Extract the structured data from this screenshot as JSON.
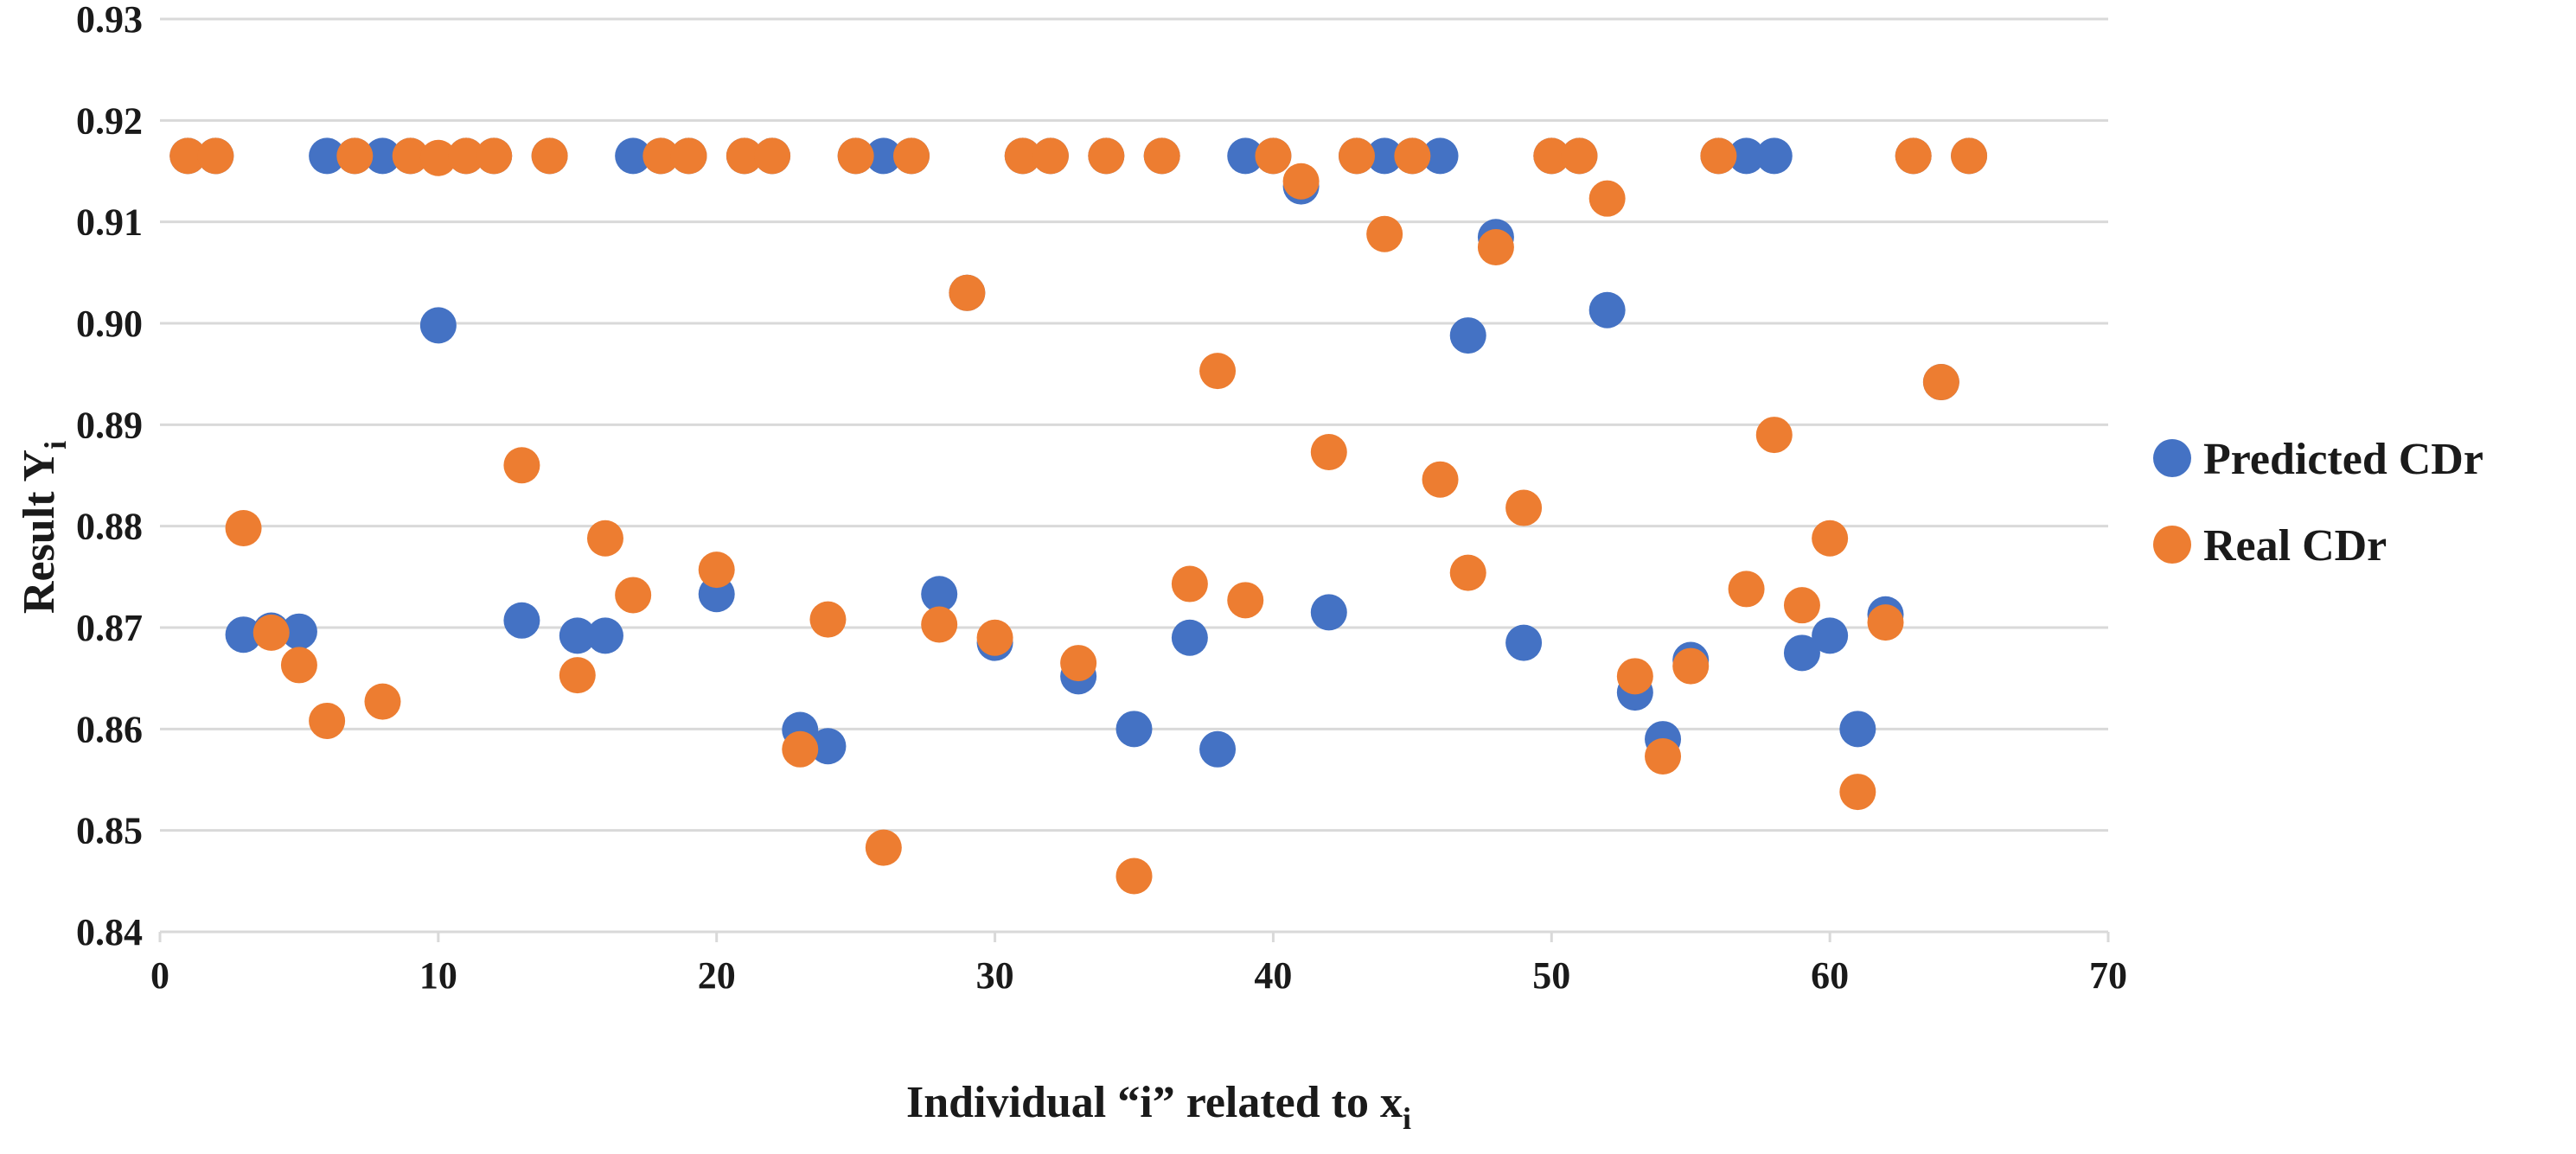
{
  "chart_data": {
    "type": "scatter",
    "title": "",
    "xlabel": "Individual “i” related to x",
    "xlabel_sub": "i",
    "ylabel": "Result Y",
    "ylabel_sub": "i",
    "xlim": [
      0,
      70
    ],
    "ylim": [
      0.84,
      0.93
    ],
    "xticks": [
      0,
      10,
      20,
      30,
      40,
      50,
      60,
      70
    ],
    "yticks": [
      0.84,
      0.85,
      0.86,
      0.87,
      0.88,
      0.89,
      0.9,
      0.91,
      0.92,
      0.93
    ],
    "ytick_labels": [
      "0.84",
      "0.85",
      "0.86",
      "0.87",
      "0.88",
      "0.89",
      "0.90",
      "0.91",
      "0.92",
      "0.93"
    ],
    "grid": "horizontal",
    "legend": "right",
    "series": [
      {
        "name": "Predicted CDr",
        "color": "#4472C4",
        "points": [
          [
            1,
            0.9165
          ],
          [
            2,
            0.9165
          ],
          [
            3,
            0.8693
          ],
          [
            4,
            0.8697
          ],
          [
            5,
            0.8696
          ],
          [
            6,
            0.9165
          ],
          [
            7,
            0.9165
          ],
          [
            8,
            0.9165
          ],
          [
            9,
            0.9165
          ],
          [
            10,
            0.8998
          ],
          [
            11,
            0.9165
          ],
          [
            12,
            0.9165
          ],
          [
            13,
            0.8707
          ],
          [
            14,
            0.9165
          ],
          [
            15,
            0.8692
          ],
          [
            16,
            0.8692
          ],
          [
            17,
            0.9165
          ],
          [
            18,
            0.9165
          ],
          [
            19,
            0.9165
          ],
          [
            20,
            0.8733
          ],
          [
            21,
            0.9165
          ],
          [
            22,
            0.9165
          ],
          [
            23,
            0.8599
          ],
          [
            24,
            0.8583
          ],
          [
            25,
            0.9165
          ],
          [
            26,
            0.9165
          ],
          [
            27,
            0.9165
          ],
          [
            28,
            0.8733
          ],
          [
            29,
            0.903
          ],
          [
            30,
            0.8685
          ],
          [
            31,
            0.9165
          ],
          [
            32,
            0.9165
          ],
          [
            33,
            0.8652
          ],
          [
            34,
            0.9165
          ],
          [
            35,
            0.86
          ],
          [
            36,
            0.9165
          ],
          [
            37,
            0.869
          ],
          [
            38,
            0.858
          ],
          [
            39,
            0.9165
          ],
          [
            40,
            0.9165
          ],
          [
            41,
            0.9135
          ],
          [
            42,
            0.8715
          ],
          [
            43,
            0.9165
          ],
          [
            44,
            0.9165
          ],
          [
            45,
            0.9165
          ],
          [
            46,
            0.9165
          ],
          [
            47,
            0.8988
          ],
          [
            48,
            0.9085
          ],
          [
            49,
            0.8685
          ],
          [
            50,
            0.9165
          ],
          [
            51,
            0.9165
          ],
          [
            52,
            0.9013
          ],
          [
            53,
            0.8636
          ],
          [
            54,
            0.859
          ],
          [
            55,
            0.8668
          ],
          [
            56,
            0.9165
          ],
          [
            57,
            0.9165
          ],
          [
            58,
            0.9165
          ],
          [
            59,
            0.8675
          ],
          [
            60,
            0.8692
          ],
          [
            61,
            0.86
          ],
          [
            62,
            0.8713
          ],
          [
            63,
            0.9165
          ],
          [
            64,
            0.8942
          ],
          [
            65,
            0.9165
          ]
        ]
      },
      {
        "name": "Real CDr",
        "color": "#ED7D31",
        "points": [
          [
            1,
            0.9165
          ],
          [
            2,
            0.9165
          ],
          [
            3,
            0.8798
          ],
          [
            4,
            0.8695
          ],
          [
            5,
            0.8663
          ],
          [
            6,
            0.8608
          ],
          [
            7,
            0.9165
          ],
          [
            8,
            0.8627
          ],
          [
            9,
            0.9165
          ],
          [
            10,
            0.9163
          ],
          [
            11,
            0.9165
          ],
          [
            12,
            0.9165
          ],
          [
            13,
            0.886
          ],
          [
            14,
            0.9165
          ],
          [
            15,
            0.8653
          ],
          [
            16,
            0.8788
          ],
          [
            17,
            0.8732
          ],
          [
            18,
            0.9165
          ],
          [
            19,
            0.9165
          ],
          [
            20,
            0.8757
          ],
          [
            21,
            0.9165
          ],
          [
            22,
            0.9165
          ],
          [
            23,
            0.858
          ],
          [
            24,
            0.8708
          ],
          [
            25,
            0.9165
          ],
          [
            26,
            0.8483
          ],
          [
            27,
            0.9165
          ],
          [
            28,
            0.8703
          ],
          [
            29,
            0.903
          ],
          [
            30,
            0.869
          ],
          [
            31,
            0.9165
          ],
          [
            32,
            0.9165
          ],
          [
            33,
            0.8665
          ],
          [
            34,
            0.9165
          ],
          [
            35,
            0.8455
          ],
          [
            36,
            0.9165
          ],
          [
            37,
            0.8743
          ],
          [
            38,
            0.8953
          ],
          [
            39,
            0.8727
          ],
          [
            40,
            0.9165
          ],
          [
            41,
            0.914
          ],
          [
            42,
            0.8873
          ],
          [
            43,
            0.9165
          ],
          [
            44,
            0.9088
          ],
          [
            45,
            0.9165
          ],
          [
            46,
            0.8846
          ],
          [
            47,
            0.8754
          ],
          [
            48,
            0.9075
          ],
          [
            49,
            0.8818
          ],
          [
            50,
            0.9165
          ],
          [
            51,
            0.9165
          ],
          [
            52,
            0.9123
          ],
          [
            53,
            0.8652
          ],
          [
            54,
            0.8573
          ],
          [
            55,
            0.8662
          ],
          [
            56,
            0.9165
          ],
          [
            57,
            0.8738
          ],
          [
            58,
            0.889
          ],
          [
            59,
            0.8722
          ],
          [
            60,
            0.8788
          ],
          [
            61,
            0.8538
          ],
          [
            62,
            0.8705
          ],
          [
            63,
            0.9165
          ],
          [
            64,
            0.8942
          ],
          [
            65,
            0.9165
          ]
        ]
      }
    ]
  }
}
